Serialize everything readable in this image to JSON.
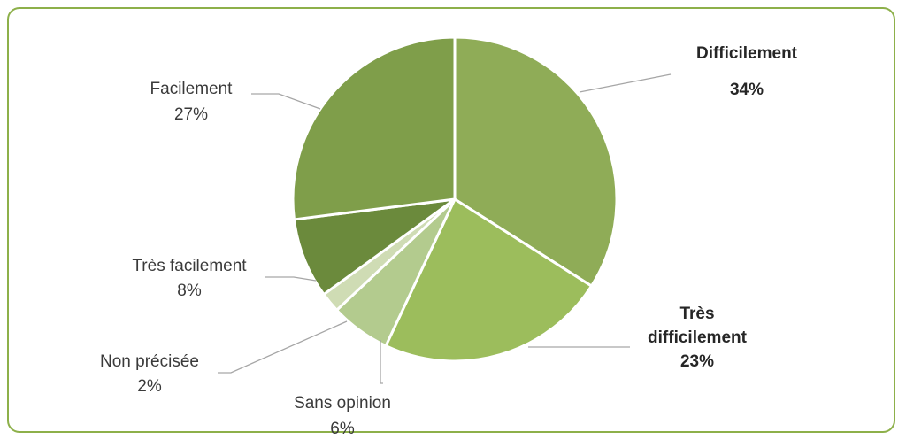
{
  "chart_data": {
    "type": "pie",
    "title": "",
    "slices": [
      {
        "label": "Difficilement",
        "value": 34,
        "pct_label": "34%",
        "color": "#8fac57",
        "bold": true
      },
      {
        "label": "Très difficilement",
        "value": 23,
        "pct_label": "23%",
        "color": "#9cbd5c",
        "bold": true
      },
      {
        "label": "Sans opinion",
        "value": 6,
        "pct_label": "6%",
        "color": "#b3cb8e",
        "bold": false
      },
      {
        "label": "Non précisée",
        "value": 2,
        "pct_label": "2%",
        "color": "#cfdcb4",
        "bold": false
      },
      {
        "label": "Très facilement",
        "value": 8,
        "pct_label": "8%",
        "color": "#6b8a3c",
        "bold": false
      },
      {
        "label": "Facilement",
        "value": 27,
        "pct_label": "27%",
        "color": "#7f9e4a",
        "bold": false
      }
    ],
    "slice_border_color": "#ffffff",
    "frame_color": "#8db04a",
    "label_color": "#3a3a3a",
    "leader_color": "#a6a6a6"
  }
}
